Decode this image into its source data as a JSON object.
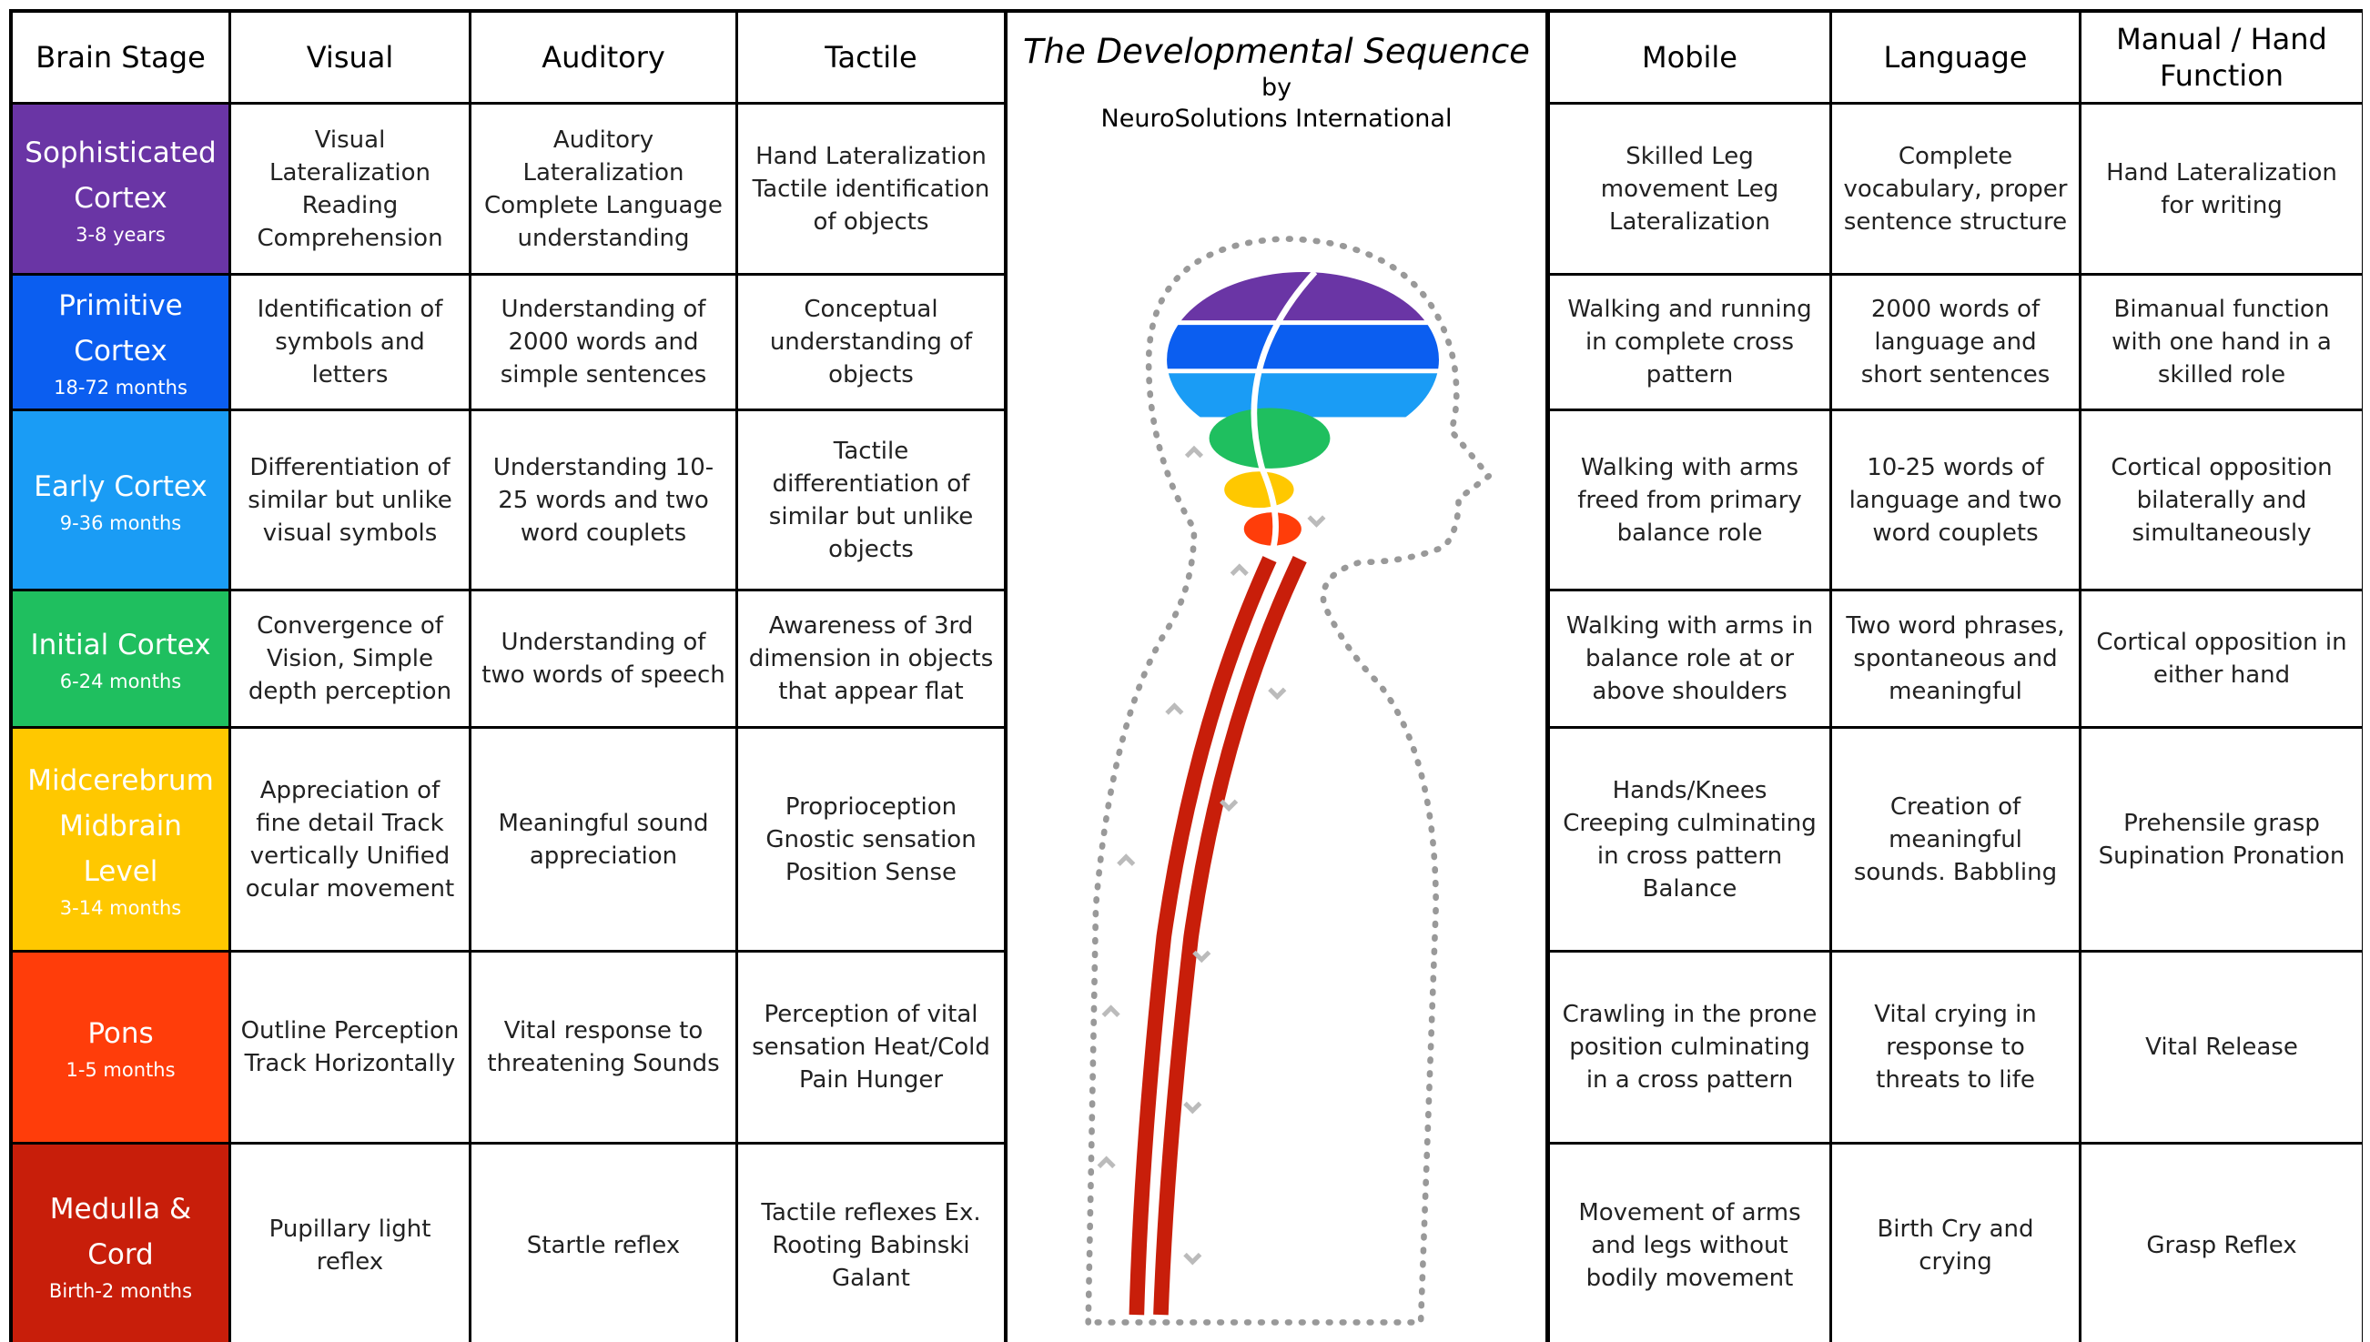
{
  "header": {
    "columns": [
      "Brain Stage",
      "Visual",
      "Auditory",
      "Tactile",
      "Mobile",
      "Language",
      "Manual / Hand Function"
    ]
  },
  "title": {
    "main": "The Developmental Sequence",
    "by": "by",
    "org": "NeuroSolutions International"
  },
  "rows": [
    {
      "stage": "Sophisticated Cortex",
      "age": "3-8 years",
      "color": "#6a35a5",
      "cells": [
        "Visual Lateralization Reading Comprehension",
        "Auditory Lateralization Complete Language understanding",
        "Hand Lateralization Tactile identification of objects",
        "Skilled Leg movement Leg Lateralization",
        "Complete vocabulary, proper sentence structure",
        "Hand Lateralization for writing"
      ]
    },
    {
      "stage": "Primitive Cortex",
      "age": "18-72 months",
      "color": "#0b5ef0",
      "cells": [
        "Identification of symbols and letters",
        "Understanding of 2000 words and simple sentences",
        "Conceptual understanding of objects",
        "Walking and running in complete cross pattern",
        "2000 words of language and short sentences",
        "Bimanual function with one hand in a skilled role"
      ]
    },
    {
      "stage": "Early Cortex",
      "age": "9-36 months",
      "color": "#1a9cf5",
      "cells": [
        "Differentiation of similar but unlike visual symbols",
        "Understanding 10-25 words and two word couplets",
        "Tactile differentiation of similar but unlike objects",
        "Walking with arms freed from primary balance role",
        "10-25 words of language and two word couplets",
        "Cortical opposition bilaterally and simultaneously"
      ]
    },
    {
      "stage": "Initial Cortex",
      "age": "6-24 months",
      "color": "#1fbf5f",
      "cells": [
        "Convergence of Vision, Simple depth perception",
        "Understanding of two words of speech",
        "Awareness of 3rd dimension in objects that appear flat",
        "Walking with arms in balance role at or above shoulders",
        "Two word phrases, spontaneous and meaningful",
        "Cortical opposition in either hand"
      ]
    },
    {
      "stage": "Midcerebrum Midbrain Level",
      "age": "3-14 months",
      "color": "#ffc800",
      "cells": [
        "Appreciation of fine detail Track vertically Unified ocular movement",
        "Meaningful sound appreciation",
        "Proprioception Gnostic sensation Position Sense",
        "Hands/Knees Creeping culminating in cross pattern Balance",
        "Creation of meaningful sounds. Babbling",
        "Prehensile grasp Supination Pronation"
      ]
    },
    {
      "stage": "Pons",
      "age": "1-5 months",
      "color": "#ff3d0a",
      "cells": [
        "Outline Perception Track Horizontally",
        "Vital response to threatening Sounds",
        "Perception of vital sensation Heat/Cold Pain Hunger",
        "Crawling in the prone position culminating in a cross pattern",
        "Vital crying in response to threats to life",
        "Vital Release"
      ]
    },
    {
      "stage": "Medulla & Cord",
      "age": "Birth-2 months",
      "color": "#c81e0a",
      "cells": [
        "Pupillary light reflex",
        "Startle reflex",
        "Tactile reflexes Ex. Rooting Babinski Galant",
        "Movement of arms and legs without bodily movement",
        "Birth Cry and crying",
        "Grasp Reflex"
      ]
    }
  ]
}
